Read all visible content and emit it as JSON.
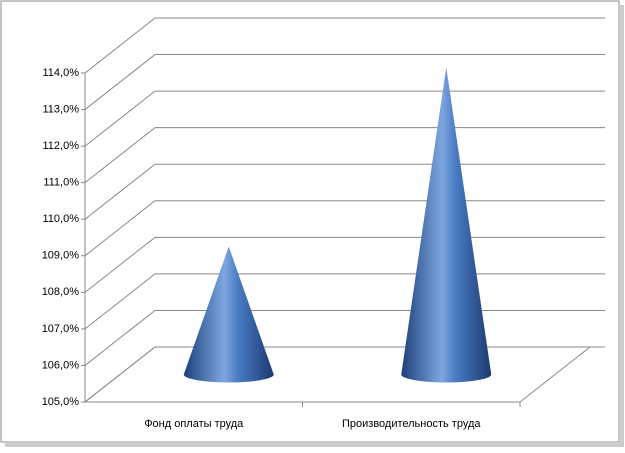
{
  "chart_data": {
    "type": "cone3d",
    "categories": [
      "Фонд оплаты труда",
      "Производительность труда"
    ],
    "values": [
      108.5,
      113.4
    ],
    "color": "#3f6eb5",
    "ylim": [
      105,
      114
    ],
    "yticks": [
      {
        "value": 105,
        "label": "105,0%"
      },
      {
        "value": 106,
        "label": "106,0%"
      },
      {
        "value": 107,
        "label": "107,0%"
      },
      {
        "value": 108,
        "label": "108,0%"
      },
      {
        "value": 109,
        "label": "109,0%"
      },
      {
        "value": 110,
        "label": "110,0%"
      },
      {
        "value": 111,
        "label": "111,0%"
      },
      {
        "value": 112,
        "label": "112,0%"
      },
      {
        "value": 113,
        "label": "113,0%"
      },
      {
        "value": 114,
        "label": "114,0%"
      }
    ],
    "grid": true
  }
}
